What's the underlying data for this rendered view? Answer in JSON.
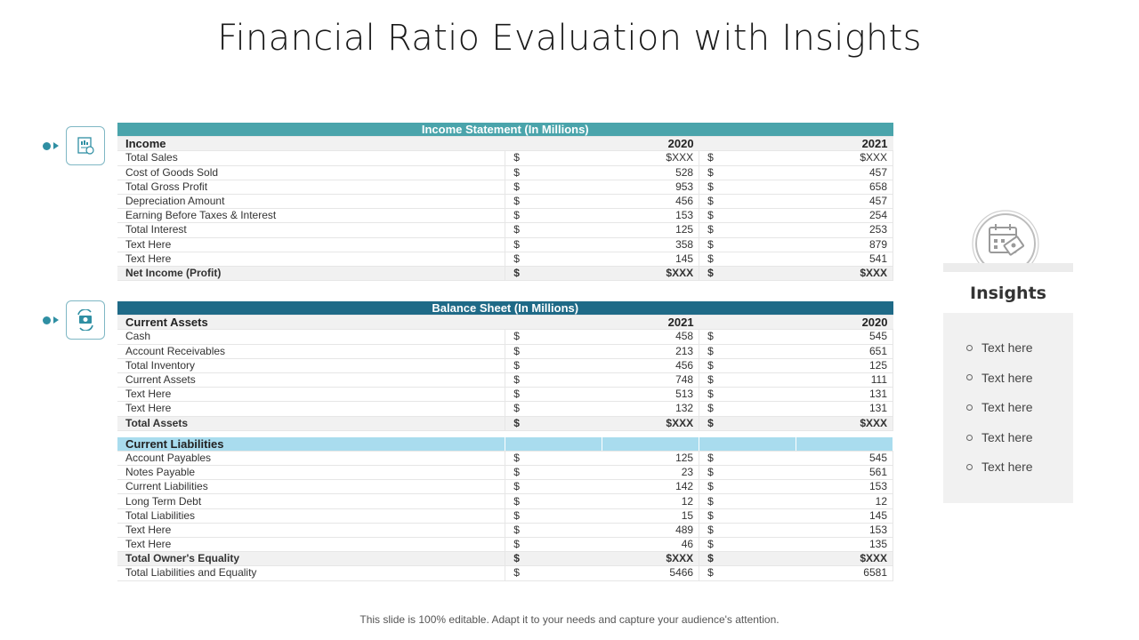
{
  "title": "Financial Ratio Evaluation with Insights",
  "income_statement": {
    "band_label": "Income Statement (In Millions)",
    "header": {
      "label": "Income",
      "year_a": "2020",
      "year_b": "2021"
    },
    "currency_symbol": "$",
    "rows": [
      {
        "label": "Total Sales",
        "a": "$XXX",
        "b": "$XXX",
        "bold": false
      },
      {
        "label": "Cost of Goods Sold",
        "a": "528",
        "b": "457",
        "bold": false
      },
      {
        "label": "Total Gross Profit",
        "a": "953",
        "b": "658",
        "bold": false
      },
      {
        "label": "Depreciation Amount",
        "a": "456",
        "b": "457",
        "bold": false
      },
      {
        "label": "Earning Before Taxes & Interest",
        "a": "153",
        "b": "254",
        "bold": false
      },
      {
        "label": "Total Interest",
        "a": "125",
        "b": "253",
        "bold": false
      },
      {
        "label": "Text Here",
        "a": "358",
        "b": "879",
        "bold": false
      },
      {
        "label": "Text Here",
        "a": "145",
        "b": "541",
        "bold": false
      },
      {
        "label": "Net Income (Profit)",
        "a": "$XXX",
        "b": "$XXX",
        "bold": true
      }
    ]
  },
  "balance_sheet": {
    "band_label": "Balance Sheet (In Millions)",
    "assets_header": {
      "label": "Current  Assets",
      "year_a": "2021",
      "year_b": "2020"
    },
    "assets_rows": [
      {
        "label": "Cash",
        "a": "458",
        "b": "545",
        "bold": false
      },
      {
        "label": "Account Receivables",
        "a": "213",
        "b": "651",
        "bold": false
      },
      {
        "label": "Total Inventory",
        "a": "456",
        "b": "125",
        "bold": false
      },
      {
        "label": "Current Assets",
        "a": "748",
        "b": "111",
        "bold": false
      },
      {
        "label": "Text Here",
        "a": "513",
        "b": "131",
        "bold": false
      },
      {
        "label": "Text Here",
        "a": "132",
        "b": "131",
        "bold": false
      },
      {
        "label": "Total Assets",
        "a": "$XXX",
        "b": "$XXX",
        "bold": true
      }
    ],
    "liabilities_header": {
      "label": "Current  Liabilities"
    },
    "liabilities_rows": [
      {
        "label": "Account Payables",
        "a": "125",
        "b": "545",
        "bold": false
      },
      {
        "label": "Notes Payable",
        "a": "23",
        "b": "561",
        "bold": false
      },
      {
        "label": "Current Liabilities",
        "a": "142",
        "b": "153",
        "bold": false
      },
      {
        "label": "Long Term Debt",
        "a": "12",
        "b": "12",
        "bold": false
      },
      {
        "label": "Total Liabilities",
        "a": "15",
        "b": "145",
        "bold": false
      },
      {
        "label": "Text Here",
        "a": "489",
        "b": "153",
        "bold": false
      },
      {
        "label": "Text Here",
        "a": "46",
        "b": "135",
        "bold": false
      },
      {
        "label": "Total Owner's Equality",
        "a": "$XXX",
        "b": "$XXX",
        "bold": true
      },
      {
        "label": "Total Liabilities and Equality",
        "a": "5466",
        "b": "6581",
        "bold": false
      }
    ]
  },
  "insights": {
    "title": "Insights",
    "items": [
      "Text here",
      "Text here",
      "Text here",
      "Text here",
      "Text here"
    ]
  },
  "icons": {
    "income": "financial-report-icon",
    "balance": "money-exchange-icon",
    "insights": "calendar-money-icon"
  },
  "colors": {
    "income_band": "#4aa4ab",
    "balance_band": "#1f6a87",
    "liabilities_band": "#a9dcee"
  },
  "footer": "This slide is 100% editable. Adapt it to your needs and capture your audience's attention."
}
